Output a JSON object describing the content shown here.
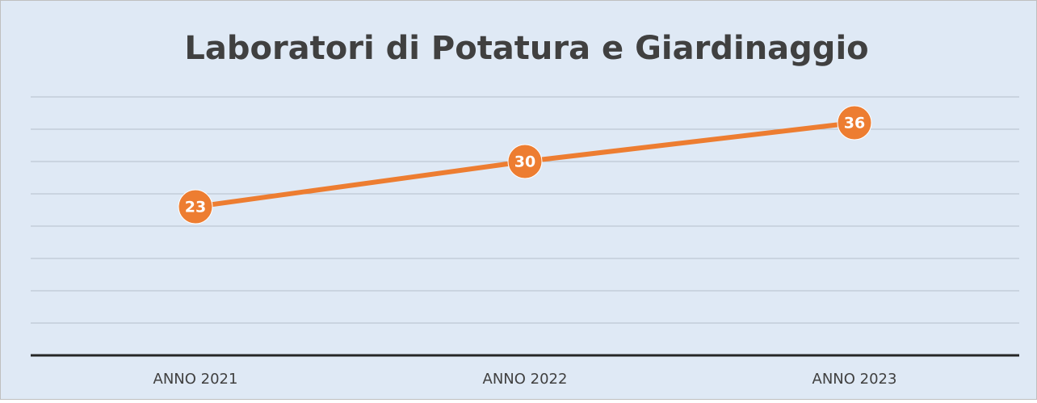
{
  "chart_data": {
    "type": "line",
    "title": "Laboratori di Potatura e Giardinaggio",
    "categories": [
      "ANNO 2021",
      "ANNO 2022",
      "ANNO 2023"
    ],
    "series": [
      {
        "color": "#ed7d31",
        "values": [
          23,
          30,
          36
        ]
      }
    ],
    "ylim": [
      0,
      40
    ],
    "yticks": [
      0,
      5,
      10,
      15,
      20,
      25,
      30,
      35,
      40
    ],
    "grid": true
  }
}
